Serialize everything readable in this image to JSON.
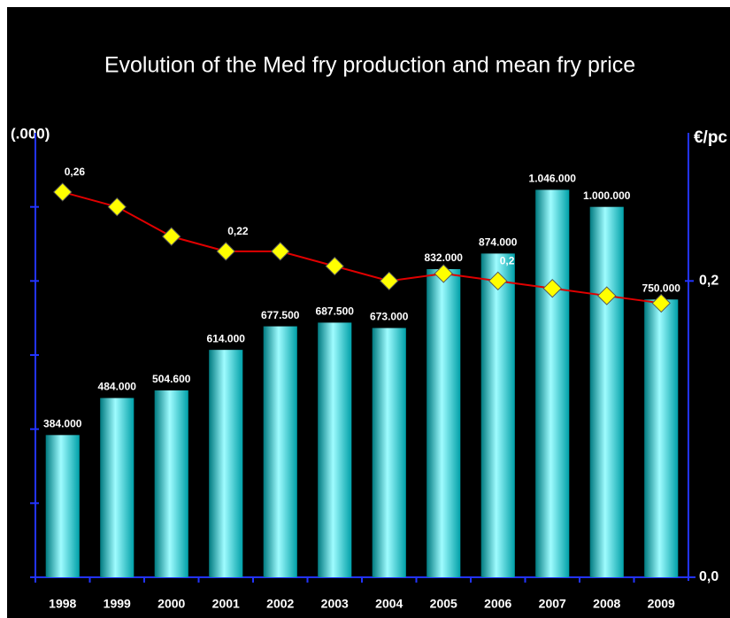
{
  "chart_data": {
    "type": "bar",
    "title": "Evolution of the Med fry production and mean fry price",
    "ylabel": "(.000)",
    "y2label": "€/pc",
    "categories": [
      "1998",
      "1999",
      "2000",
      "2001",
      "2002",
      "2003",
      "2004",
      "2005",
      "2006",
      "2007",
      "2008",
      "2009"
    ],
    "ylim": [
      0,
      1200
    ],
    "yticks": [
      0,
      200,
      400,
      600,
      800,
      1000
    ],
    "y2lim": [
      0,
      0.3
    ],
    "y2ticks": [
      {
        "value": 0,
        "label": "0,0"
      },
      {
        "value": 0.2,
        "label": "0,2"
      }
    ],
    "series": [
      {
        "type": "bar",
        "color": "#00e5e5",
        "values": [
          384,
          484,
          504.6,
          614,
          677.5,
          687.5,
          673,
          832,
          874,
          1046,
          1000,
          750
        ],
        "value_labels": [
          "384.000",
          "484.000",
          "504.600",
          "614.000",
          "677.500",
          "687.500",
          "673.000",
          "832.000",
          "874.000",
          "1.046.000",
          "1.000.000",
          "750.000"
        ]
      },
      {
        "type": "line",
        "axis": "y2",
        "color": "#e00000",
        "marker_color": "#ffff00",
        "values": [
          0.26,
          0.25,
          0.23,
          0.22,
          0.22,
          0.21,
          0.2,
          0.205,
          0.2,
          0.195,
          0.19,
          0.185
        ],
        "value_labels": [
          "0,26",
          null,
          null,
          "0,22",
          null,
          null,
          null,
          null,
          "0,2",
          null,
          null,
          null
        ]
      }
    ]
  }
}
